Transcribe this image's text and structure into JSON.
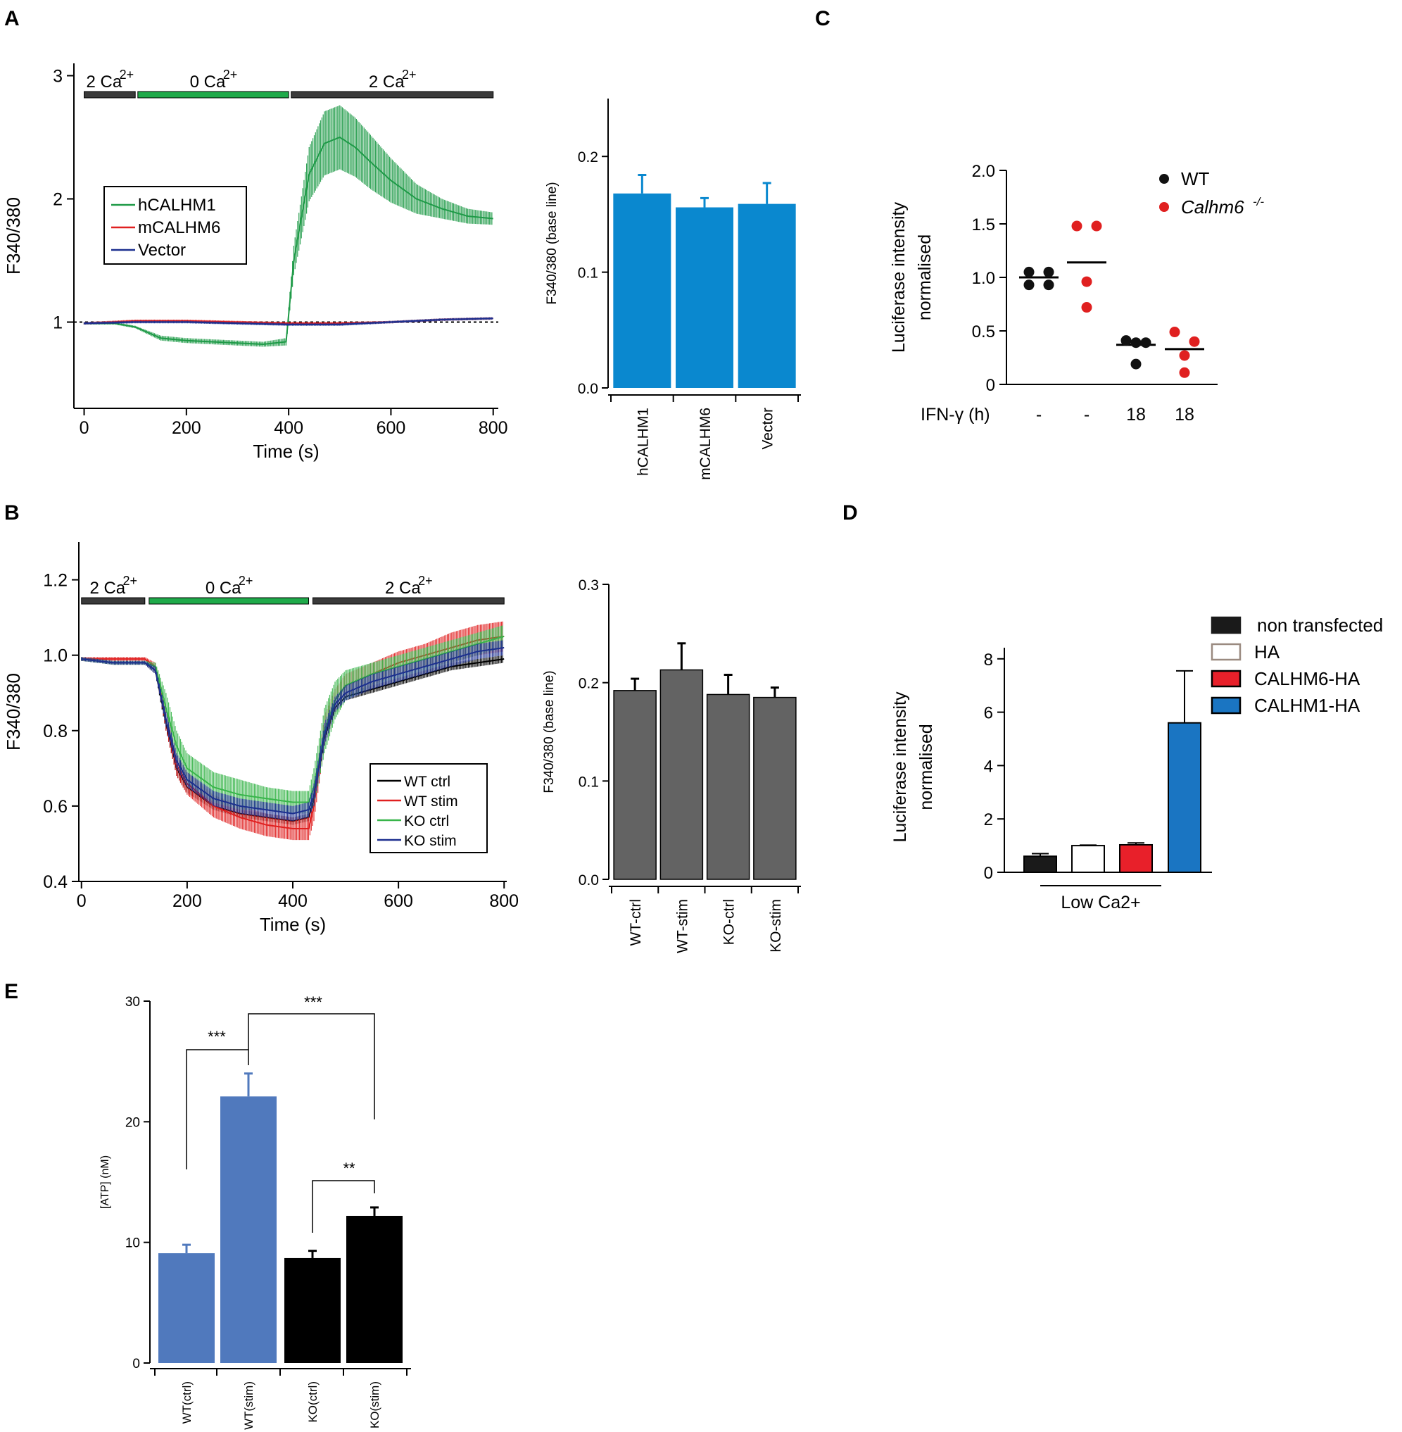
{
  "chart_data": [
    {
      "panel": "A",
      "type": "line",
      "xlabel": "Time (s)",
      "ylabel": "F340/380",
      "xlim": [
        -20,
        810
      ],
      "ylim": [
        0.3,
        3.1
      ],
      "xticks": [
        0,
        200,
        400,
        600,
        800
      ],
      "yticks": [
        1,
        2,
        3
      ],
      "reference_line": 1,
      "condition_bars": [
        {
          "label": "2 Ca",
          "sup": "2+",
          "start": 0,
          "end": 100,
          "color": "#3a3a3a"
        },
        {
          "label": "0 Ca",
          "sup": "2+",
          "start": 105,
          "end": 400,
          "color": "#1faa4a"
        },
        {
          "label": "2 Ca",
          "sup": "2+",
          "start": 405,
          "end": 800,
          "color": "#3a3a3a"
        }
      ],
      "legend": {
        "position": "left",
        "entries": [
          "hCALHM1",
          "mCALHM6",
          "Vector"
        ]
      },
      "series": [
        {
          "name": "hCALHM1",
          "color": "#1e9a47",
          "x": [
            0,
            60,
            100,
            150,
            200,
            250,
            300,
            350,
            395,
            410,
            440,
            470,
            500,
            530,
            560,
            600,
            650,
            700,
            750,
            800
          ],
          "y": [
            0.99,
            0.99,
            0.96,
            0.87,
            0.85,
            0.84,
            0.83,
            0.82,
            0.84,
            1.5,
            2.2,
            2.45,
            2.5,
            2.42,
            2.3,
            2.15,
            2.0,
            1.92,
            1.86,
            1.84
          ],
          "err": [
            0.01,
            0.01,
            0.01,
            0.02,
            0.02,
            0.02,
            0.02,
            0.02,
            0.03,
            0.12,
            0.22,
            0.26,
            0.26,
            0.24,
            0.22,
            0.18,
            0.12,
            0.08,
            0.06,
            0.05
          ]
        },
        {
          "name": "mCALHM6",
          "color": "#e02020",
          "x": [
            0,
            100,
            200,
            300,
            400,
            500,
            600,
            700,
            800
          ],
          "y": [
            0.99,
            1.01,
            1.01,
            1.0,
            0.99,
            0.99,
            1.0,
            1.02,
            1.03
          ],
          "err": [
            0.01,
            0.01,
            0.01,
            0.01,
            0.01,
            0.01,
            0.01,
            0.01,
            0.01
          ]
        },
        {
          "name": "Vector",
          "color": "#1c2f8f",
          "x": [
            0,
            100,
            200,
            300,
            400,
            500,
            600,
            700,
            800
          ],
          "y": [
            0.99,
            1.0,
            1.0,
            0.99,
            0.98,
            0.98,
            1.0,
            1.02,
            1.03
          ],
          "err": [
            0.01,
            0.01,
            0.01,
            0.01,
            0.01,
            0.01,
            0.01,
            0.01,
            0.01
          ]
        }
      ]
    },
    {
      "panel": "A-inset",
      "type": "bar",
      "ylabel": "F340/380 (base line)",
      "ylim": [
        0,
        0.25
      ],
      "yticks": [
        0.0,
        0.1,
        0.2
      ],
      "ytick_labels": [
        "0.0",
        "0.1",
        "0.2"
      ],
      "bar_color": "#0a88cf",
      "categories": [
        "hCALHM1",
        "mCALHM6",
        "Vector"
      ],
      "values": [
        0.168,
        0.156,
        0.159
      ],
      "errors": [
        0.016,
        0.008,
        0.018
      ]
    },
    {
      "panel": "B",
      "type": "line",
      "xlabel": "Time (s)",
      "ylabel": "F340/380",
      "xlim": [
        -5,
        805
      ],
      "ylim": [
        0.4,
        1.3
      ],
      "xticks": [
        0,
        200,
        400,
        600,
        800
      ],
      "yticks": [
        0.4,
        0.6,
        0.8,
        1.0,
        1.2
      ],
      "ytick_labels": [
        "0.4",
        "0.6",
        "0.8",
        "1.0",
        "1.2"
      ],
      "condition_bars": [
        {
          "label": "2 Ca",
          "sup": "2+",
          "start": 0,
          "end": 120,
          "color": "#3a3a3a"
        },
        {
          "label": "0 Ca",
          "sup": "2+",
          "start": 128,
          "end": 430,
          "color": "#1faa4a"
        },
        {
          "label": "2 Ca",
          "sup": "2+",
          "start": 438,
          "end": 800,
          "color": "#3a3a3a"
        }
      ],
      "legend": {
        "position": "bottom-right",
        "entries": [
          "WT ctrl",
          "WT stim",
          "KO ctrl",
          "KO stim"
        ]
      },
      "series": [
        {
          "name": "WT ctrl",
          "color": "#000000",
          "x": [
            0,
            60,
            120,
            140,
            160,
            180,
            200,
            250,
            300,
            350,
            400,
            430,
            440,
            460,
            480,
            500,
            550,
            600,
            650,
            700,
            750,
            800
          ],
          "y": [
            0.99,
            0.98,
            0.98,
            0.96,
            0.82,
            0.7,
            0.65,
            0.6,
            0.58,
            0.57,
            0.56,
            0.57,
            0.62,
            0.78,
            0.86,
            0.89,
            0.91,
            0.93,
            0.95,
            0.97,
            0.98,
            0.99
          ],
          "err": [
            0.005,
            0.005,
            0.005,
            0.01,
            0.02,
            0.02,
            0.015,
            0.01,
            0.01,
            0.01,
            0.01,
            0.01,
            0.02,
            0.02,
            0.015,
            0.01,
            0.01,
            0.01,
            0.01,
            0.01,
            0.01,
            0.01
          ]
        },
        {
          "name": "WT stim",
          "color": "#e02020",
          "x": [
            0,
            60,
            120,
            140,
            160,
            180,
            200,
            250,
            300,
            350,
            400,
            430,
            440,
            460,
            480,
            500,
            550,
            600,
            650,
            700,
            750,
            800
          ],
          "y": [
            0.99,
            0.99,
            0.99,
            0.97,
            0.83,
            0.71,
            0.66,
            0.6,
            0.57,
            0.55,
            0.54,
            0.54,
            0.6,
            0.8,
            0.88,
            0.92,
            0.95,
            0.98,
            1.0,
            1.02,
            1.04,
            1.05
          ],
          "err": [
            0.005,
            0.005,
            0.005,
            0.01,
            0.03,
            0.03,
            0.03,
            0.03,
            0.03,
            0.03,
            0.03,
            0.03,
            0.04,
            0.04,
            0.03,
            0.03,
            0.03,
            0.03,
            0.03,
            0.04,
            0.04,
            0.04
          ]
        },
        {
          "name": "KO ctrl",
          "color": "#38b54a",
          "x": [
            0,
            60,
            120,
            140,
            160,
            180,
            200,
            250,
            300,
            350,
            400,
            430,
            440,
            460,
            480,
            500,
            550,
            600,
            650,
            700,
            750,
            800
          ],
          "y": [
            0.99,
            0.98,
            0.98,
            0.97,
            0.86,
            0.76,
            0.7,
            0.65,
            0.63,
            0.62,
            0.61,
            0.61,
            0.65,
            0.8,
            0.88,
            0.92,
            0.95,
            0.97,
            0.99,
            1.01,
            1.03,
            1.05
          ],
          "err": [
            0.005,
            0.005,
            0.005,
            0.01,
            0.04,
            0.04,
            0.04,
            0.04,
            0.04,
            0.03,
            0.03,
            0.03,
            0.05,
            0.06,
            0.05,
            0.04,
            0.03,
            0.03,
            0.03,
            0.03,
            0.03,
            0.03
          ]
        },
        {
          "name": "KO stim",
          "color": "#1c2f8f",
          "x": [
            0,
            60,
            120,
            140,
            160,
            180,
            200,
            250,
            300,
            350,
            400,
            430,
            440,
            460,
            480,
            500,
            550,
            600,
            650,
            700,
            750,
            800
          ],
          "y": [
            0.99,
            0.98,
            0.98,
            0.96,
            0.83,
            0.72,
            0.67,
            0.62,
            0.6,
            0.59,
            0.58,
            0.59,
            0.63,
            0.79,
            0.87,
            0.9,
            0.93,
            0.95,
            0.97,
            0.99,
            1.01,
            1.02
          ],
          "err": [
            0.005,
            0.005,
            0.005,
            0.01,
            0.02,
            0.02,
            0.02,
            0.02,
            0.02,
            0.02,
            0.02,
            0.02,
            0.03,
            0.03,
            0.02,
            0.02,
            0.02,
            0.02,
            0.02,
            0.02,
            0.02,
            0.02
          ]
        }
      ]
    },
    {
      "panel": "B-inset",
      "type": "bar",
      "ylabel": "F340/380 (base line)",
      "ylim": [
        0,
        0.3
      ],
      "yticks": [
        0.0,
        0.1,
        0.2,
        0.3
      ],
      "ytick_labels": [
        "0.0",
        "0.1",
        "0.2",
        "0.3"
      ],
      "bar_color": "#636363",
      "categories": [
        "WT-ctrl",
        "WT-stim",
        "KO-ctrl",
        "KO-stim"
      ],
      "values": [
        0.192,
        0.213,
        0.188,
        0.185
      ],
      "errors": [
        0.012,
        0.027,
        0.02,
        0.01
      ]
    },
    {
      "panel": "C",
      "type": "scatter",
      "ylabel": "Luciferase intensity normalised",
      "ylabel_lines": [
        "Luciferase intensity",
        "normalised"
      ],
      "ylim": [
        0,
        2.0
      ],
      "yticks": [
        0,
        0.5,
        1.0,
        1.5,
        2.0
      ],
      "ytick_labels": [
        "0",
        "0.5",
        "1.0",
        "1.5",
        "2.0"
      ],
      "xrow_label": "IFN-γ (h)",
      "groups": [
        {
          "label": "-",
          "series": "WT",
          "color": "#111111",
          "points": [
            1.05,
            1.05,
            0.93,
            0.93
          ],
          "mean": 1.0
        },
        {
          "label": "-",
          "series": "Calhm6-/-",
          "color": "#e02020",
          "points": [
            1.48,
            1.48,
            0.96,
            0.72
          ],
          "mean": 1.14
        },
        {
          "label": "18",
          "series": "WT",
          "color": "#111111",
          "points": [
            0.41,
            0.39,
            0.39,
            0.19
          ],
          "mean": 0.37
        },
        {
          "label": "18",
          "series": "Calhm6-/-",
          "color": "#e02020",
          "points": [
            0.49,
            0.4,
            0.27,
            0.11
          ],
          "mean": 0.33
        }
      ],
      "legend": {
        "position": "top-right",
        "entries": [
          {
            "label": "WT",
            "color": "#111111"
          },
          {
            "label": "Calhm6",
            "sup": "-/-",
            "color": "#e02020"
          }
        ]
      }
    },
    {
      "panel": "D",
      "type": "bar",
      "ylabel": "Luciferase intensity normalised",
      "ylabel_lines": [
        "Luciferase intensity",
        "normalised"
      ],
      "ylim": [
        0,
        8.5
      ],
      "yticks": [
        0,
        2,
        4,
        6,
        8
      ],
      "categories": [
        "non transfected",
        "HA",
        "CALHM6-HA",
        "CALHM1-HA"
      ],
      "values": [
        0.6,
        1.0,
        1.03,
        5.6
      ],
      "errors": [
        0.1,
        0.02,
        0.07,
        1.95
      ],
      "fills": [
        "#1a1a1a",
        "#ffffff",
        "#e8202a",
        "#1a75c2"
      ],
      "strokes": [
        "#000000",
        "#000000",
        "#000000",
        "#000000"
      ],
      "legend": {
        "position": "top-right",
        "entries": [
          {
            "label": "non transfected",
            "fill": "#1a1a1a",
            "stroke": "#1a1a1a"
          },
          {
            "label": "HA",
            "fill": "#ffffff",
            "stroke": "#9a8a80"
          },
          {
            "label": "CALHM6-HA",
            "fill": "#e8202a",
            "stroke": "#000000"
          },
          {
            "label": "CALHM1-HA",
            "fill": "#1a75c2",
            "stroke": "#000000"
          }
        ]
      },
      "group_label": "Low Ca2+"
    },
    {
      "panel": "E",
      "type": "bar",
      "ylabel": "[ATP] (nM)",
      "ylim": [
        0,
        30
      ],
      "yticks": [
        0,
        10,
        20,
        30
      ],
      "categories": [
        "WT(ctrl)",
        "WT(stim)",
        "KO(ctrl)",
        "KO(stim)"
      ],
      "values": [
        9.1,
        22.1,
        8.7,
        12.2
      ],
      "errors": [
        0.7,
        1.9,
        0.6,
        0.7
      ],
      "colors": [
        "#5079bd",
        "#5079bd",
        "#000000",
        "#000000"
      ],
      "significance": [
        {
          "from": 0,
          "to": 1,
          "label": "***"
        },
        {
          "from": 1,
          "to": 3,
          "label": "***"
        },
        {
          "from": 2,
          "to": 3,
          "label": "**"
        }
      ]
    }
  ]
}
